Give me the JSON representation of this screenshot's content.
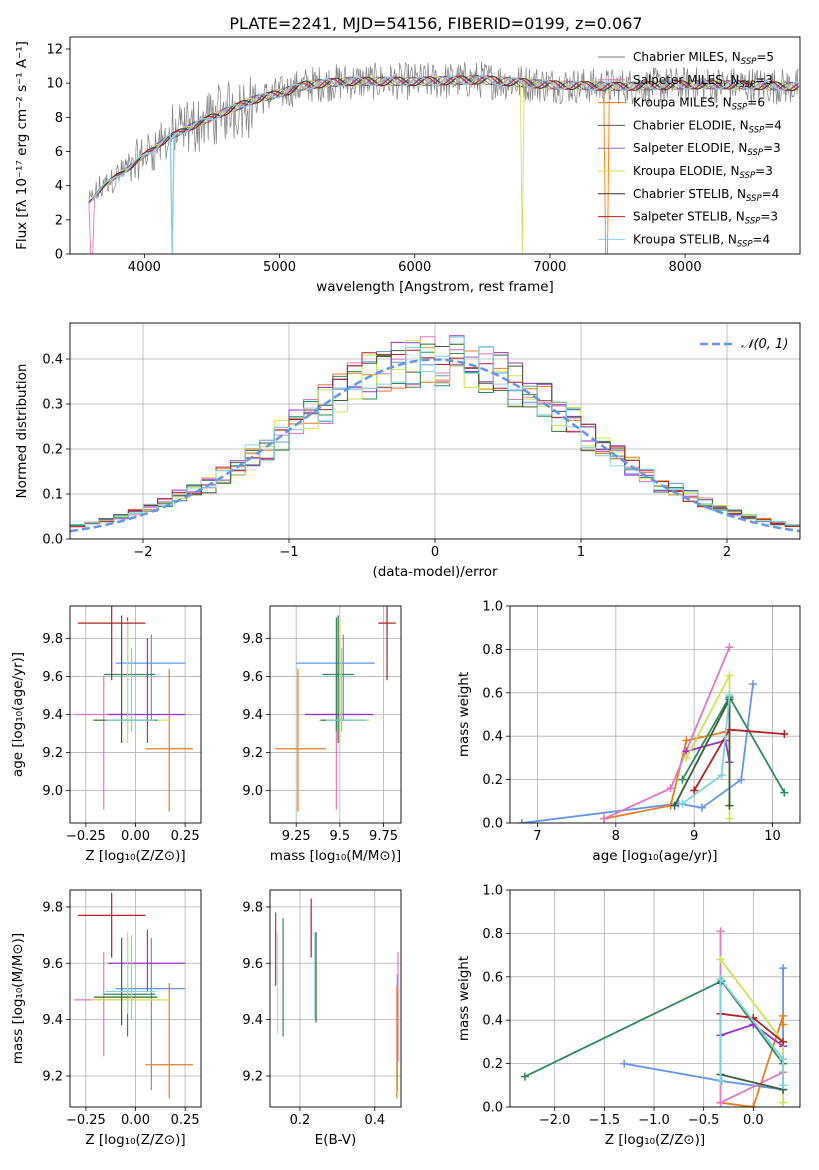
{
  "figure_title": "PLATE=2241, MJD=54156, FIBERID=0199, z=0.067",
  "model_colors": [
    "#808080",
    "#e377c2",
    "#ff7f0e",
    "#555555",
    "#9467bd",
    "#dbdb5d",
    "#2f2f2f",
    "#b22222",
    "#87ceeb"
  ],
  "series_colors": [
    "#6495ed",
    "#e67e22",
    "#e377c2",
    "#2e8b57",
    "#9932cc",
    "#c8e650",
    "#3a5f3a",
    "#b22222",
    "#7fd3e0"
  ],
  "chart_data": [
    {
      "id": "spectrum",
      "type": "line",
      "xlabel": "wavelength [Angstrom, rest frame]",
      "ylabel": "Flux [fλ 10⁻¹⁷ erg cm⁻² s⁻¹ A⁻¹]",
      "xlim": [
        3450,
        8850
      ],
      "ylim": [
        0,
        12.7
      ],
      "xticks": [
        4000,
        5000,
        6000,
        7000,
        8000
      ],
      "yticks": [
        0,
        2,
        4,
        6,
        8,
        10,
        12
      ],
      "grid": false,
      "legend_position": "right",
      "legend": [
        {
          "label": "Chabrier MILES, N",
          "sub": "SSP",
          "tail": "=5"
        },
        {
          "label": "Salpeter MILES, N",
          "sub": "SSP",
          "tail": "=3"
        },
        {
          "label": "Kroupa MILES, N",
          "sub": "SSP",
          "tail": "=6"
        },
        {
          "label": "Chabrier ELODIE, N",
          "sub": "SSP",
          "tail": "=4"
        },
        {
          "label": "Salpeter ELODIE, N",
          "sub": "SSP",
          "tail": "=3"
        },
        {
          "label": "Kroupa ELODIE, N",
          "sub": "SSP",
          "tail": "=3"
        },
        {
          "label": "Chabrier STELIB, N",
          "sub": "SSP",
          "tail": "=4"
        },
        {
          "label": "Salpeter STELIB, N",
          "sub": "SSP",
          "tail": "=3"
        },
        {
          "label": "Kroupa STELIB, N",
          "sub": "SSP",
          "tail": "=4"
        }
      ],
      "continuum": {
        "x": [
          3590,
          3700,
          3800,
          3900,
          4000,
          4200,
          4500,
          4800,
          5000,
          5200,
          5500,
          6000,
          6500,
          7000,
          7500,
          8000,
          8400,
          8800
        ],
        "y": [
          3.0,
          4.0,
          4.6,
          5.1,
          5.8,
          6.9,
          8.0,
          9.0,
          9.4,
          9.9,
          10.1,
          10.1,
          10.2,
          9.9,
          9.8,
          9.9,
          9.9,
          9.8
        ]
      }
    },
    {
      "id": "residuals",
      "type": "step",
      "xlabel": "(data-model)/error",
      "ylabel": "Normed distribution",
      "xlim": [
        -2.5,
        2.5
      ],
      "ylim": [
        0,
        0.48
      ],
      "xticks": [
        -2,
        -1,
        0,
        1,
        2
      ],
      "yticks": [
        0.0,
        0.1,
        0.2,
        0.3,
        0.4
      ],
      "grid": true,
      "legend_position": "upper right",
      "gaussian_label": "𝒩(0, 1)",
      "bin_width": 0.1
    },
    {
      "id": "age_vs_Z",
      "type": "errorbar",
      "xlabel": "Z [log₁₀(Z/Z⊙)]",
      "ylabel": "age  [log₁₀(age/yr)]",
      "xlim": [
        -0.33,
        0.33
      ],
      "ylim": [
        8.83,
        9.97
      ],
      "xticks": [
        -0.25,
        0.0,
        0.25
      ],
      "xticklabels": [
        "−0.25",
        "0.00",
        "0.25"
      ],
      "yticks": [
        9.0,
        9.2,
        9.4,
        9.6,
        9.8
      ],
      "grid": true,
      "points": [
        {
          "x": 0.08,
          "dx": [
            0.18,
            0.17
          ],
          "y": 9.67,
          "dy": [
            0.3,
            0.15
          ],
          "c": 0
        },
        {
          "x": 0.17,
          "dx": [
            0.12,
            0.12
          ],
          "y": 9.22,
          "dy": [
            0.33,
            0.42
          ],
          "c": 1
        },
        {
          "x": -0.16,
          "dx": [
            0.15,
            0.12
          ],
          "y": 9.4,
          "dy": [
            0.5,
            0.2
          ],
          "c": 2
        },
        {
          "x": -0.04,
          "dx": [
            0.12,
            0.14
          ],
          "y": 9.61,
          "dy": [
            0.3,
            0.3
          ],
          "c": 3
        },
        {
          "x": 0.06,
          "dx": [
            0.2,
            0.19
          ],
          "y": 9.4,
          "dy": [
            0.15,
            0.4
          ],
          "c": 4
        },
        {
          "x": -0.04,
          "dx": [
            0.18,
            0.22
          ],
          "y": 9.37,
          "dy": [
            0.12,
            0.52
          ],
          "c": 5
        },
        {
          "x": -0.07,
          "dx": [
            0.14,
            0.18
          ],
          "y": 9.37,
          "dy": [
            0.12,
            0.55
          ],
          "c": 6
        },
        {
          "x": -0.12,
          "dx": [
            0.17,
            0.17
          ],
          "y": 9.88,
          "dy": [
            0.3,
            0.1
          ],
          "c": 7
        },
        {
          "x": -0.02,
          "dx": [
            0.13,
            0.12
          ],
          "y": 9.37,
          "dy": [
            0.06,
            0.38
          ],
          "c": 8
        }
      ]
    },
    {
      "id": "age_vs_mass",
      "type": "errorbar",
      "xlabel": "mass [log₁₀(M/M⊙)]",
      "ylabel": "",
      "xlim": [
        9.1,
        9.85
      ],
      "ylim": [
        8.83,
        9.97
      ],
      "xticks": [
        9.25,
        9.5,
        9.75
      ],
      "yticks": [
        9.0,
        9.2,
        9.4,
        9.6,
        9.8
      ],
      "grid": true,
      "points": [
        {
          "x": 9.52,
          "dx": [
            0.27,
            0.18
          ],
          "y": 9.67,
          "dy": [
            0.3,
            0.15
          ],
          "c": 0
        },
        {
          "x": 9.26,
          "dx": [
            0.13,
            0.16
          ],
          "y": 9.22,
          "dy": [
            0.33,
            0.42
          ],
          "c": 1
        },
        {
          "x": 9.48,
          "dx": [
            0.18,
            0.13
          ],
          "y": 9.4,
          "dy": [
            0.5,
            0.2
          ],
          "c": 2
        },
        {
          "x": 9.48,
          "dx": [
            0.08,
            0.1
          ],
          "y": 9.61,
          "dy": [
            0.3,
            0.3
          ],
          "c": 3
        },
        {
          "x": 9.5,
          "dx": [
            0.2,
            0.19
          ],
          "y": 9.4,
          "dy": [
            0.15,
            0.4
          ],
          "c": 4
        },
        {
          "x": 9.5,
          "dx": [
            0.12,
            0.17
          ],
          "y": 9.37,
          "dy": [
            0.12,
            0.52
          ],
          "c": 5
        },
        {
          "x": 9.49,
          "dx": [
            0.1,
            0.16
          ],
          "y": 9.37,
          "dy": [
            0.12,
            0.55
          ],
          "c": 6
        },
        {
          "x": 9.77,
          "dx": [
            0.05,
            0.05
          ],
          "y": 9.88,
          "dy": [
            0.3,
            0.1
          ],
          "c": 7
        },
        {
          "x": 9.51,
          "dx": [
            0.09,
            0.14
          ],
          "y": 9.37,
          "dy": [
            0.06,
            0.38
          ],
          "c": 8
        }
      ]
    },
    {
      "id": "weight_vs_age",
      "type": "line",
      "xlabel": "age  [log₁₀(age/yr)]",
      "ylabel": "mass weight",
      "xlim": [
        6.65,
        10.35
      ],
      "ylim": [
        0,
        1.0
      ],
      "xticks": [
        7,
        8,
        9,
        10
      ],
      "yticks": [
        0.0,
        0.2,
        0.4,
        0.6,
        0.8,
        1.0
      ],
      "grid": true,
      "series": [
        {
          "c": 0,
          "x": [
            6.8,
            8.8,
            9.1,
            9.6,
            9.75
          ],
          "y": [
            0.0,
            0.09,
            0.07,
            0.2,
            0.64
          ]
        },
        {
          "c": 1,
          "x": [
            7.85,
            8.7,
            8.9,
            9.4
          ],
          "y": [
            0.02,
            0.08,
            0.38,
            0.42
          ]
        },
        {
          "c": 2,
          "x": [
            7.85,
            8.7,
            9.45
          ],
          "y": [
            0.02,
            0.16,
            0.81
          ]
        },
        {
          "c": 3,
          "x": [
            8.85,
            9.45,
            10.15
          ],
          "y": [
            0.2,
            0.58,
            0.14
          ]
        },
        {
          "c": 4,
          "x": [
            8.9,
            9.4,
            9.45
          ],
          "y": [
            0.33,
            0.38,
            0.28
          ]
        },
        {
          "c": 5,
          "x": [
            8.9,
            9.45,
            9.45
          ],
          "y": [
            0.3,
            0.68,
            0.02
          ]
        },
        {
          "c": 6,
          "x": [
            8.75,
            9.45,
            9.45
          ],
          "y": [
            0.08,
            0.57,
            0.08
          ]
        },
        {
          "c": 7,
          "x": [
            9.0,
            9.45,
            10.15
          ],
          "y": [
            0.15,
            0.43,
            0.41
          ]
        },
        {
          "c": 8,
          "x": [
            8.85,
            9.35,
            9.45
          ],
          "y": [
            0.09,
            0.22,
            0.59
          ]
        }
      ]
    },
    {
      "id": "mass_vs_Z",
      "type": "errorbar",
      "xlabel": "Z [log₁₀(Z/Z⊙)]",
      "ylabel": "mass [log₁₀(M/M⊙)]",
      "xlim": [
        -0.33,
        0.33
      ],
      "ylim": [
        9.09,
        9.86
      ],
      "xticks": [
        -0.25,
        0.0,
        0.25
      ],
      "xticklabels": [
        "−0.25",
        "0.00",
        "0.25"
      ],
      "yticks": [
        9.2,
        9.4,
        9.6,
        9.8
      ],
      "grid": true,
      "points": [
        {
          "x": 0.08,
          "dx": [
            0.18,
            0.17
          ],
          "y": 9.51,
          "dy": [
            0.36,
            0.18
          ],
          "c": 0
        },
        {
          "x": 0.17,
          "dx": [
            0.12,
            0.12
          ],
          "y": 9.24,
          "dy": [
            0.12,
            0.29
          ],
          "c": 1
        },
        {
          "x": -0.16,
          "dx": [
            0.15,
            0.12
          ],
          "y": 9.47,
          "dy": [
            0.2,
            0.17
          ],
          "c": 2
        },
        {
          "x": -0.04,
          "dx": [
            0.12,
            0.14
          ],
          "y": 9.49,
          "dy": [
            0.15,
            0.2
          ],
          "c": 3
        },
        {
          "x": 0.06,
          "dx": [
            0.2,
            0.19
          ],
          "y": 9.6,
          "dy": [
            0.1,
            0.12
          ],
          "c": 4
        },
        {
          "x": -0.04,
          "dx": [
            0.18,
            0.22
          ],
          "y": 9.47,
          "dy": [
            0.05,
            0.24
          ],
          "c": 5
        },
        {
          "x": -0.07,
          "dx": [
            0.14,
            0.18
          ],
          "y": 9.48,
          "dy": [
            0.1,
            0.21
          ],
          "c": 6
        },
        {
          "x": -0.12,
          "dx": [
            0.17,
            0.17
          ],
          "y": 9.77,
          "dy": [
            0.15,
            0.08
          ],
          "c": 7
        },
        {
          "x": -0.02,
          "dx": [
            0.13,
            0.12
          ],
          "y": 9.5,
          "dy": [
            0.1,
            0.2
          ],
          "c": 8
        }
      ]
    },
    {
      "id": "mass_vs_EBV",
      "type": "errorbar",
      "xlabel": "E(B-V)",
      "ylabel": "",
      "xlim": [
        0.12,
        0.47
      ],
      "ylim": [
        9.09,
        9.86
      ],
      "xticks": [
        0.2,
        0.4
      ],
      "yticks": [
        9.2,
        9.4,
        9.6,
        9.8
      ],
      "grid": true,
      "points": [
        {
          "x": 0.46,
          "dx": [
            0,
            0
          ],
          "y": 9.38,
          "dy": [
            0.23,
            0.18
          ],
          "c": 0
        },
        {
          "x": 0.459,
          "dx": [
            0,
            0
          ],
          "y": 9.3,
          "dy": [
            0.18,
            0.22
          ],
          "c": 1
        },
        {
          "x": 0.462,
          "dx": [
            0,
            0
          ],
          "y": 9.45,
          "dy": [
            0.2,
            0.19
          ],
          "c": 2
        },
        {
          "x": 0.155,
          "dx": [
            0,
            0
          ],
          "y": 9.55,
          "dy": [
            0.21,
            0.21
          ],
          "c": 3
        },
        {
          "x": 0.135,
          "dx": [
            0,
            0
          ],
          "y": 9.65,
          "dy": [
            0.13,
            0.13
          ],
          "c": 4
        },
        {
          "x": 0.14,
          "dx": [
            0,
            0
          ],
          "y": 9.55,
          "dy": [
            0.2,
            0.16
          ],
          "c": 5
        },
        {
          "x": 0.243,
          "dx": [
            0,
            0
          ],
          "y": 9.55,
          "dy": [
            0.16,
            0.16
          ],
          "c": 6
        },
        {
          "x": 0.23,
          "dx": [
            0,
            0
          ],
          "y": 9.72,
          "dy": [
            0.1,
            0.11
          ],
          "c": 7
        },
        {
          "x": 0.24,
          "dx": [
            0,
            0
          ],
          "y": 9.55,
          "dy": [
            0.15,
            0.16
          ],
          "c": 8
        }
      ]
    },
    {
      "id": "weight_vs_Z",
      "type": "line",
      "xlabel": "Z [log₁₀(Z/Z⊙)]",
      "ylabel": "mass weight",
      "xlim": [
        -2.45,
        0.47
      ],
      "ylim": [
        0,
        1.0
      ],
      "xticks": [
        -2.0,
        -1.5,
        -1.0,
        -0.5,
        0.0
      ],
      "xticklabels": [
        "−2.0",
        "−1.5",
        "−1.0",
        "−0.5",
        "0.0"
      ],
      "yticks": [
        0.0,
        0.2,
        0.4,
        0.6,
        0.8,
        1.0
      ],
      "grid": true,
      "series": [
        {
          "c": 0,
          "x": [
            -1.3,
            -0.32,
            0.3,
            0.3
          ],
          "y": [
            0.2,
            0.12,
            0.08,
            0.64
          ]
        },
        {
          "c": 1,
          "x": [
            -0.33,
            0.0,
            0.3,
            0.3
          ],
          "y": [
            0.02,
            0.0,
            0.42,
            0.38
          ]
        },
        {
          "c": 2,
          "x": [
            -0.33,
            -0.33,
            0.3,
            0.3
          ],
          "y": [
            0.81,
            0.02,
            0.16,
            0.22
          ]
        },
        {
          "c": 3,
          "x": [
            -2.3,
            -0.32,
            0.3
          ],
          "y": [
            0.14,
            0.58,
            0.2
          ]
        },
        {
          "c": 4,
          "x": [
            -0.33,
            0.0,
            0.3
          ],
          "y": [
            0.33,
            0.38,
            0.28
          ]
        },
        {
          "c": 5,
          "x": [
            -0.33,
            0.3,
            0.3
          ],
          "y": [
            0.68,
            0.3,
            0.02
          ]
        },
        {
          "c": 6,
          "x": [
            -0.33,
            -0.33,
            0.3
          ],
          "y": [
            0.57,
            0.15,
            0.08
          ]
        },
        {
          "c": 7,
          "x": [
            -0.33,
            0.0,
            0.3
          ],
          "y": [
            0.43,
            0.41,
            0.3
          ]
        },
        {
          "c": 8,
          "x": [
            -0.33,
            -0.33,
            0.3,
            0.3
          ],
          "y": [
            0.12,
            0.59,
            0.22,
            0.1
          ]
        }
      ]
    }
  ]
}
